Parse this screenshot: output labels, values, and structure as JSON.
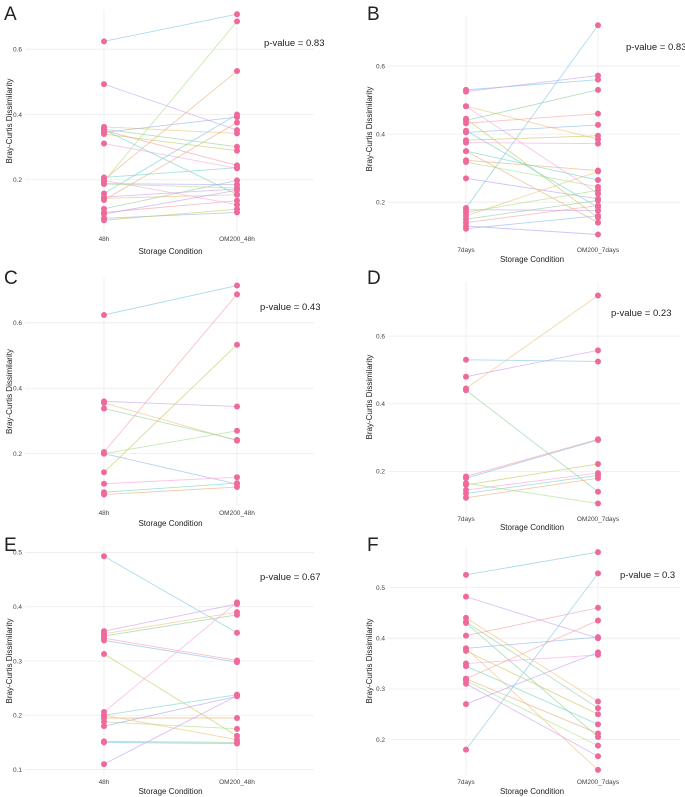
{
  "figure": {
    "colors": {
      "point": "#ee6a9b",
      "gridline": "#ececec",
      "text": "#222222"
    },
    "palette": [
      "#7ec8e3",
      "#c9a2ef",
      "#f0c27a",
      "#8fd19e",
      "#f5a3a3",
      "#8fb8f0",
      "#c8c85a",
      "#f7a6e0",
      "#72d6c9",
      "#e8b07a",
      "#a9e08a",
      "#b9a0f5"
    ]
  },
  "chart_data": [
    {
      "type": "line",
      "panel": "A",
      "xlabel": "Storage Condition",
      "ylabel": "Bray-Curtis Dissimilarity",
      "categories": [
        "48h",
        "OM200_48h"
      ],
      "ylim": [
        0.04,
        0.72
      ],
      "yticks": [
        0.2,
        0.4,
        0.6
      ],
      "ytick_labels": [
        "0.2",
        "0.4",
        "0.6"
      ],
      "pvalue_text": "p-value = 0.83",
      "pairs": [
        [
          0.624,
          0.707
        ],
        [
          0.493,
          0.352
        ],
        [
          0.362,
          0.342
        ],
        [
          0.355,
          0.301
        ],
        [
          0.351,
          0.244
        ],
        [
          0.345,
          0.392
        ],
        [
          0.34,
          0.289
        ],
        [
          0.311,
          0.235
        ],
        [
          0.207,
          0.237
        ],
        [
          0.2,
          0.533
        ],
        [
          0.195,
          0.685
        ],
        [
          0.188,
          0.185
        ],
        [
          0.158,
          0.4
        ],
        [
          0.147,
          0.172
        ],
        [
          0.143,
          0.154
        ],
        [
          0.111,
          0.198
        ],
        [
          0.1,
          0.136
        ],
        [
          0.082,
          0.1
        ],
        [
          0.076,
          0.11
        ],
        [
          0.198,
          0.124
        ],
        [
          0.353,
          0.155
        ],
        [
          0.138,
          0.375
        ],
        [
          0.187,
          0.175
        ],
        [
          0.095,
          0.168
        ]
      ]
    },
    {
      "type": "line",
      "panel": "B",
      "xlabel": "Storage Condition",
      "ylabel": "Bray-Curtis Dissimilarity",
      "categories": [
        "7days",
        "OM200_7days"
      ],
      "ylim": [
        0.08,
        0.75
      ],
      "yticks": [
        0.2,
        0.4,
        0.6
      ],
      "ytick_labels": [
        "0.2",
        "0.4",
        "0.6"
      ],
      "pvalue_text": "p-value = 0.83",
      "pairs": [
        [
          0.53,
          0.56
        ],
        [
          0.525,
          0.572
        ],
        [
          0.482,
          0.385
        ],
        [
          0.44,
          0.53
        ],
        [
          0.432,
          0.46
        ],
        [
          0.405,
          0.427
        ],
        [
          0.382,
          0.395
        ],
        [
          0.375,
          0.372
        ],
        [
          0.35,
          0.265
        ],
        [
          0.323,
          0.293
        ],
        [
          0.318,
          0.245
        ],
        [
          0.27,
          0.21
        ],
        [
          0.183,
          0.72
        ],
        [
          0.178,
          0.175
        ],
        [
          0.16,
          0.29
        ],
        [
          0.15,
          0.205
        ],
        [
          0.14,
          0.19
        ],
        [
          0.122,
          0.16
        ],
        [
          0.445,
          0.155
        ],
        [
          0.482,
          0.225
        ],
        [
          0.41,
          0.185
        ],
        [
          0.35,
          0.14
        ],
        [
          0.17,
          0.235
        ],
        [
          0.13,
          0.105
        ]
      ]
    },
    {
      "type": "line",
      "panel": "C",
      "xlabel": "Storage Condition",
      "ylabel": "Bray-Curtis Dissimilarity",
      "categories": [
        "48h",
        "OM200_48h"
      ],
      "ylim": [
        0.04,
        0.74
      ],
      "yticks": [
        0.2,
        0.4,
        0.6
      ],
      "ytick_labels": [
        "0.2",
        "0.4",
        "0.6"
      ],
      "pvalue_text": "p-value = 0.43",
      "pairs": [
        [
          0.624,
          0.714
        ],
        [
          0.36,
          0.344
        ],
        [
          0.355,
          0.24
        ],
        [
          0.338,
          0.242
        ],
        [
          0.205,
          0.687
        ],
        [
          0.2,
          0.107
        ],
        [
          0.143,
          0.533
        ],
        [
          0.108,
          0.128
        ],
        [
          0.082,
          0.11
        ],
        [
          0.075,
          0.098
        ],
        [
          0.2,
          0.27
        ]
      ]
    },
    {
      "type": "line",
      "panel": "D",
      "xlabel": "Storage Condition",
      "ylabel": "Bray-Curtis Dissimilarity",
      "categories": [
        "7days",
        "OM200_7days"
      ],
      "ylim": [
        0.08,
        0.76
      ],
      "yticks": [
        0.2,
        0.4,
        0.6
      ],
      "ytick_labels": [
        "0.2",
        "0.4",
        "0.6"
      ],
      "pvalue_text": "p-value = 0.23",
      "pairs": [
        [
          0.53,
          0.525
        ],
        [
          0.48,
          0.558
        ],
        [
          0.445,
          0.72
        ],
        [
          0.44,
          0.14
        ],
        [
          0.185,
          0.295
        ],
        [
          0.18,
          0.293
        ],
        [
          0.16,
          0.222
        ],
        [
          0.145,
          0.195
        ],
        [
          0.135,
          0.188
        ],
        [
          0.122,
          0.18
        ],
        [
          0.165,
          0.105
        ]
      ]
    },
    {
      "type": "line",
      "panel": "E",
      "xlabel": "Storage Condition",
      "ylabel": "Bray-Curtis Dissimilarity",
      "categories": [
        "48h",
        "OM200_48h"
      ],
      "ylim": [
        0.09,
        0.51
      ],
      "yticks": [
        0.1,
        0.2,
        0.3,
        0.4,
        0.5
      ],
      "ytick_labels": [
        "0.1",
        "0.2",
        "0.3",
        "0.4",
        "0.5"
      ],
      "pvalue_text": "p-value = 0.67",
      "pairs": [
        [
          0.493,
          0.352
        ],
        [
          0.355,
          0.405
        ],
        [
          0.35,
          0.39
        ],
        [
          0.346,
          0.385
        ],
        [
          0.342,
          0.301
        ],
        [
          0.338,
          0.298
        ],
        [
          0.313,
          0.162
        ],
        [
          0.206,
          0.408
        ],
        [
          0.2,
          0.238
        ],
        [
          0.195,
          0.195
        ],
        [
          0.188,
          0.175
        ],
        [
          0.18,
          0.235
        ],
        [
          0.15,
          0.148
        ],
        [
          0.11,
          0.236
        ],
        [
          0.2,
          0.155
        ],
        [
          0.152,
          0.15
        ]
      ]
    },
    {
      "type": "line",
      "panel": "F",
      "xlabel": "Storage Condition",
      "ylabel": "Bray-Curtis Dissimilarity",
      "categories": [
        "7days",
        "OM200_7days"
      ],
      "ylim": [
        0.13,
        0.58
      ],
      "yticks": [
        0.2,
        0.3,
        0.4,
        0.5
      ],
      "ytick_labels": [
        "0.2",
        "0.3",
        "0.4",
        "0.5"
      ],
      "pvalue_text": "p-value = 0.3",
      "pairs": [
        [
          0.525,
          0.57
        ],
        [
          0.482,
          0.4
        ],
        [
          0.44,
          0.275
        ],
        [
          0.432,
          0.262
        ],
        [
          0.405,
          0.46
        ],
        [
          0.38,
          0.402
        ],
        [
          0.375,
          0.25
        ],
        [
          0.35,
          0.367
        ],
        [
          0.345,
          0.23
        ],
        [
          0.32,
          0.212
        ],
        [
          0.316,
          0.188
        ],
        [
          0.27,
          0.372
        ],
        [
          0.18,
          0.528
        ],
        [
          0.31,
          0.167
        ],
        [
          0.38,
          0.14
        ],
        [
          0.43,
          0.205
        ],
        [
          0.32,
          0.435
        ]
      ]
    }
  ]
}
